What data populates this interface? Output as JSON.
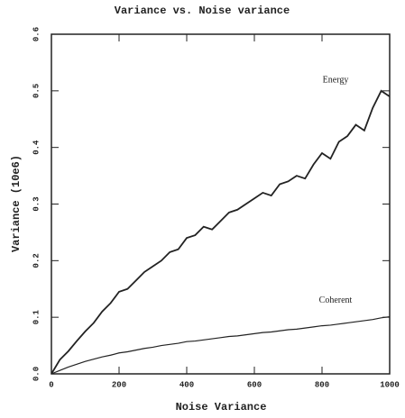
{
  "chart_data": {
    "type": "line",
    "title": "Variance vs. Noise variance",
    "x_label": "Noise Variance",
    "y_label": "Variance (10e6)",
    "x": [
      0,
      25,
      50,
      75,
      100,
      125,
      150,
      175,
      200,
      225,
      250,
      275,
      300,
      325,
      350,
      375,
      400,
      425,
      450,
      475,
      500,
      525,
      550,
      575,
      600,
      625,
      650,
      675,
      700,
      725,
      750,
      775,
      800,
      825,
      850,
      875,
      900,
      925,
      950,
      975,
      1000
    ],
    "series": [
      {
        "name": "Energy",
        "color": "#222222",
        "values": [
          0,
          0.025,
          0.04,
          0.058,
          0.075,
          0.09,
          0.11,
          0.125,
          0.145,
          0.15,
          0.165,
          0.18,
          0.19,
          0.2,
          0.215,
          0.22,
          0.24,
          0.245,
          0.26,
          0.255,
          0.27,
          0.285,
          0.29,
          0.3,
          0.31,
          0.32,
          0.315,
          0.335,
          0.34,
          0.35,
          0.345,
          0.37,
          0.39,
          0.38,
          0.41,
          0.42,
          0.44,
          0.43,
          0.47,
          0.5,
          0.49
        ]
      },
      {
        "name": "Coherent",
        "color": "#222222",
        "values": [
          0,
          0.006,
          0.012,
          0.017,
          0.022,
          0.026,
          0.03,
          0.033,
          0.037,
          0.039,
          0.042,
          0.045,
          0.047,
          0.05,
          0.052,
          0.054,
          0.057,
          0.058,
          0.06,
          0.062,
          0.064,
          0.066,
          0.067,
          0.069,
          0.071,
          0.073,
          0.074,
          0.076,
          0.078,
          0.079,
          0.081,
          0.083,
          0.085,
          0.086,
          0.088,
          0.09,
          0.092,
          0.094,
          0.096,
          0.099,
          0.101
        ]
      }
    ],
    "xlim": [
      0,
      1000
    ],
    "xticks": [
      0,
      200,
      400,
      600,
      800,
      1000
    ],
    "ylim": [
      0,
      0.6
    ],
    "yticks": [
      {
        "value": 0,
        "label": "0.0"
      },
      0.1,
      0.2,
      0.3,
      0.4,
      0.5,
      0.6
    ]
  }
}
